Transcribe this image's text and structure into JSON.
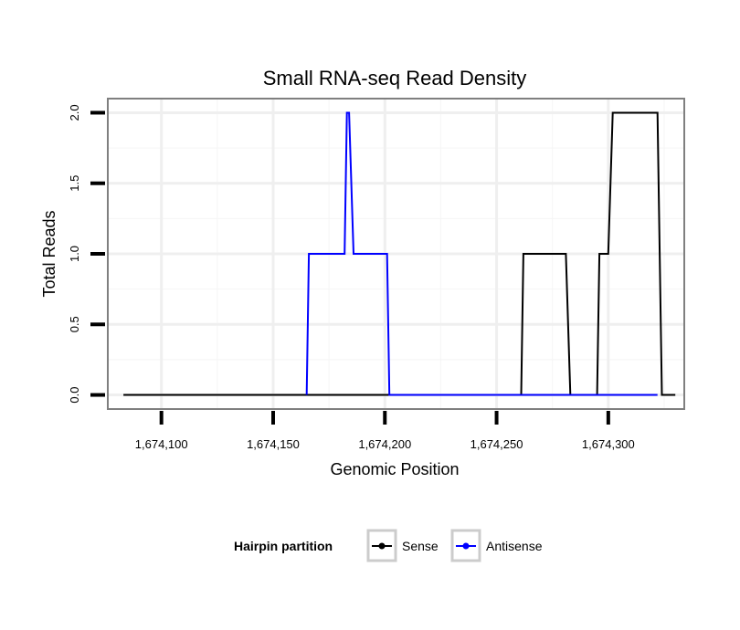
{
  "chart_data": {
    "type": "line",
    "title": "Small RNA-seq Read Density",
    "xlabel": "Genomic Position",
    "ylabel": "Total Reads",
    "xlim": [
      1674076,
      1674334
    ],
    "ylim": [
      -0.1,
      2.1
    ],
    "xticks": [
      1674100,
      1674150,
      1674200,
      1674250,
      1674300
    ],
    "xtick_labels": [
      "1,674,100",
      "1,674,150",
      "1,674,200",
      "1,674,250",
      "1,674,300"
    ],
    "yticks": [
      0.0,
      0.5,
      1.0,
      1.5,
      2.0
    ],
    "ytick_labels": [
      "0.0",
      "0.5",
      "1.0",
      "1.5",
      "2.0"
    ],
    "grid": true,
    "series": [
      {
        "name": "Sense",
        "color": "#000000",
        "x": [
          1674083,
          1674261,
          1674262,
          1674281,
          1674283,
          1674295,
          1674296,
          1674300,
          1674302,
          1674322,
          1674324,
          1674330
        ],
        "y": [
          0,
          0,
          1,
          1,
          0,
          0,
          1,
          1,
          2,
          2,
          0,
          0
        ]
      },
      {
        "name": "Antisense",
        "color": "#0000ff",
        "x": [
          1674165,
          1674166,
          1674182,
          1674183,
          1674184,
          1674186,
          1674201,
          1674202,
          1674322
        ],
        "y": [
          0,
          1,
          1,
          2,
          2,
          1,
          1,
          0,
          0
        ]
      }
    ],
    "legend": {
      "title": "Hairpin partition",
      "position": "bottom",
      "entries": [
        "Sense",
        "Antisense"
      ]
    }
  }
}
